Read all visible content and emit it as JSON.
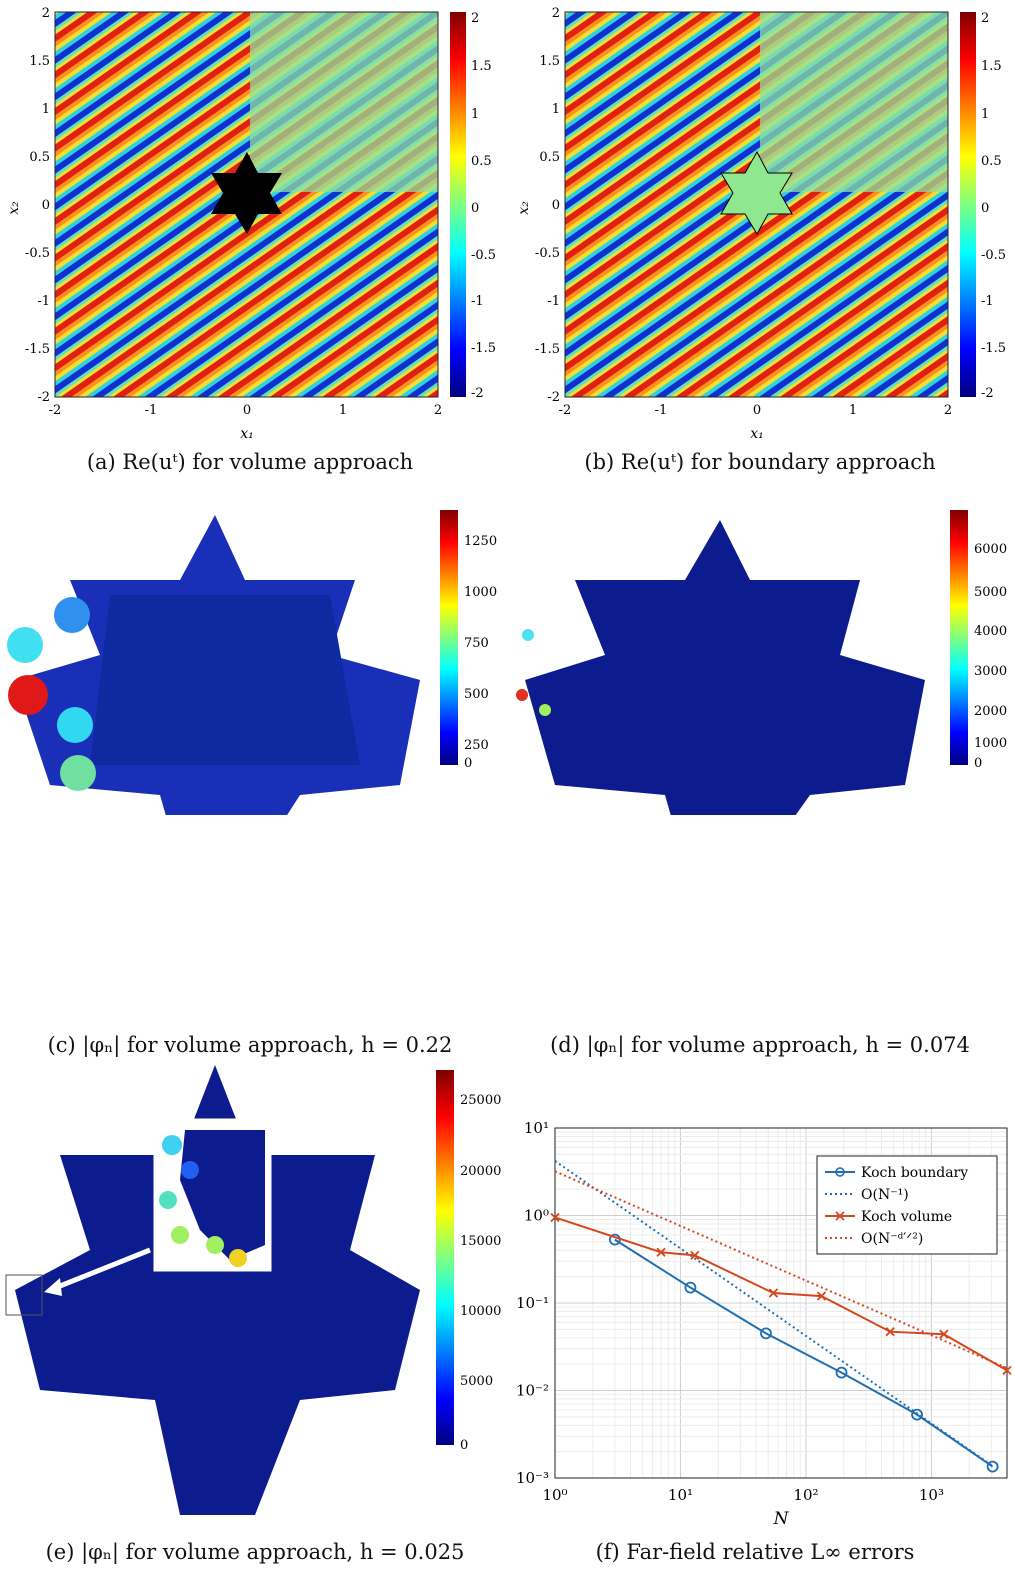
{
  "captions": {
    "a": "(a) Re(uᵗ) for volume approach",
    "b": "(b) Re(uᵗ) for boundary approach",
    "c": "(c) |φₙ| for volume approach, h = 0.22",
    "d": "(d) |φₙ| for volume approach, h = 0.074",
    "e": "(e) |φₙ| for volume approach, h = 0.025",
    "f": "(f) Far-field relative L∞ errors"
  },
  "field_axes": {
    "xticks": [
      "-2",
      "-1",
      "0",
      "1",
      "2"
    ],
    "yticks": [
      "2",
      "1.5",
      "1",
      "0.5",
      "0",
      "-0.5",
      "-1",
      "-1.5",
      "-2"
    ],
    "xlabel": "x₁",
    "ylabel": "x₂"
  },
  "colorbars": {
    "field": [
      "2",
      "1.5",
      "1",
      "0.5",
      "0",
      "-0.5",
      "-1",
      "-1.5",
      "-2"
    ],
    "c": [
      "1250",
      "1000",
      "750",
      "500",
      "250",
      "0"
    ],
    "d": [
      "6000",
      "5000",
      "4000",
      "3000",
      "2000",
      "1000",
      "0"
    ],
    "e": [
      "25000",
      "20000",
      "15000",
      "10000",
      "5000",
      "0"
    ]
  },
  "chart_data": {
    "type": "line",
    "title": "",
    "xlabel": "N",
    "ylabel": "",
    "xscale": "log",
    "yscale": "log",
    "xlim": [
      1,
      4000
    ],
    "ylim": [
      0.001,
      10
    ],
    "xticks": [
      "10⁰",
      "10¹",
      "10²",
      "10³"
    ],
    "yticks": [
      "10¹",
      "10⁰",
      "10⁻¹",
      "10⁻²",
      "10⁻³"
    ],
    "grid": true,
    "legend_position": "top-right",
    "series": [
      {
        "name": "Koch boundary",
        "style": "solid",
        "marker": "circle",
        "color": "#1f6fb0",
        "x": [
          3,
          12,
          48,
          192,
          768,
          3072
        ],
        "y": [
          0.53,
          0.15,
          0.045,
          0.016,
          0.0053,
          0.00135
        ]
      },
      {
        "name": "O(N⁻¹)",
        "style": "dotted",
        "color": "#1f6fb0",
        "x": [
          1,
          3072
        ],
        "y": [
          4.2,
          0.00137
        ]
      },
      {
        "name": "Koch volume",
        "style": "solid",
        "marker": "x",
        "color": "#d4461c",
        "x": [
          1,
          7,
          13,
          55,
          133,
          469,
          1255,
          4000
        ],
        "y": [
          0.95,
          0.38,
          0.35,
          0.13,
          0.12,
          0.047,
          0.044,
          0.017
        ]
      },
      {
        "name": "O(N⁻ᵈ′ᐟ²)",
        "style": "dotted",
        "color": "#d4461c",
        "x": [
          1,
          4000
        ],
        "y": [
          3.2,
          0.018
        ]
      }
    ]
  }
}
